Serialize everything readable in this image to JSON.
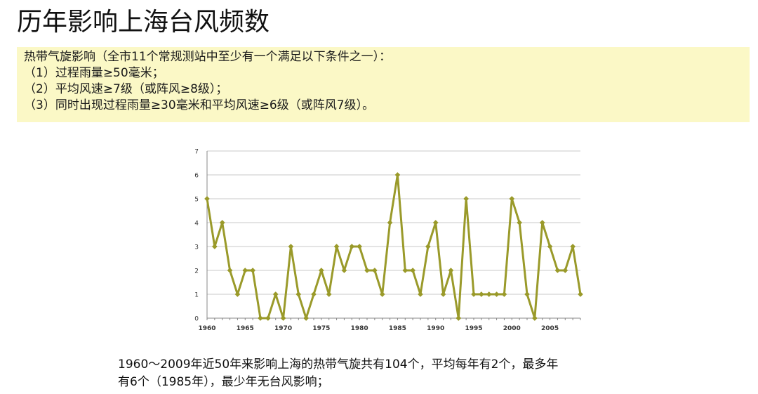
{
  "title": "历年影响上海台风频数",
  "criteria": {
    "lines": [
      "热带气旋影响（全市11个常规测站中至少有一个满足以下条件之一）：",
      "（1）过程雨量≥50毫米；",
      "（2）平均风速≥7级（或阵风≥8级）；",
      "（3）同时出现过程雨量≥30毫米和平均风速≥6级（或阵风7级）。"
    ],
    "background": "#fbf8c6"
  },
  "summary": {
    "lines": [
      "1960～2009年近50年来影响上海的热带气旋共有104个，平均每年有2个，最多年",
      "有6个（1985年），最少年无台风影响；"
    ]
  },
  "chart_data": {
    "type": "line",
    "title": "",
    "xlabel": "",
    "ylabel": "",
    "x": [
      1960,
      1961,
      1962,
      1963,
      1964,
      1965,
      1966,
      1967,
      1968,
      1969,
      1970,
      1971,
      1972,
      1973,
      1974,
      1975,
      1976,
      1977,
      1978,
      1979,
      1980,
      1981,
      1982,
      1983,
      1984,
      1985,
      1986,
      1987,
      1988,
      1989,
      1990,
      1991,
      1992,
      1993,
      1994,
      1995,
      1996,
      1997,
      1998,
      1999,
      2000,
      2001,
      2002,
      2003,
      2004,
      2005,
      2006,
      2007,
      2008,
      2009
    ],
    "series": [
      {
        "values": [
          5,
          3,
          4,
          2,
          1,
          2,
          2,
          0,
          0,
          1,
          0,
          3,
          1,
          0,
          1,
          2,
          1,
          3,
          2,
          3,
          3,
          2,
          2,
          1,
          4,
          6,
          2,
          2,
          1,
          3,
          4,
          1,
          2,
          0,
          5,
          1,
          1,
          1,
          1,
          1,
          5,
          4,
          1,
          0,
          4,
          3,
          2,
          2,
          3,
          1
        ],
        "color": "#9a9a2a"
      }
    ],
    "xticks": [
      "1960",
      "1965",
      "1970",
      "1975",
      "1980",
      "1985",
      "1990",
      "1995",
      "2000",
      "2005"
    ],
    "xtick_values": [
      1960,
      1965,
      1970,
      1975,
      1980,
      1985,
      1990,
      1995,
      2000,
      2005
    ],
    "yticks": [
      "0",
      "1",
      "2",
      "3",
      "4",
      "5",
      "6",
      "7"
    ],
    "ylim": [
      0,
      7
    ],
    "xlim": [
      1960,
      2009
    ],
    "grid": true,
    "legend": "none"
  }
}
